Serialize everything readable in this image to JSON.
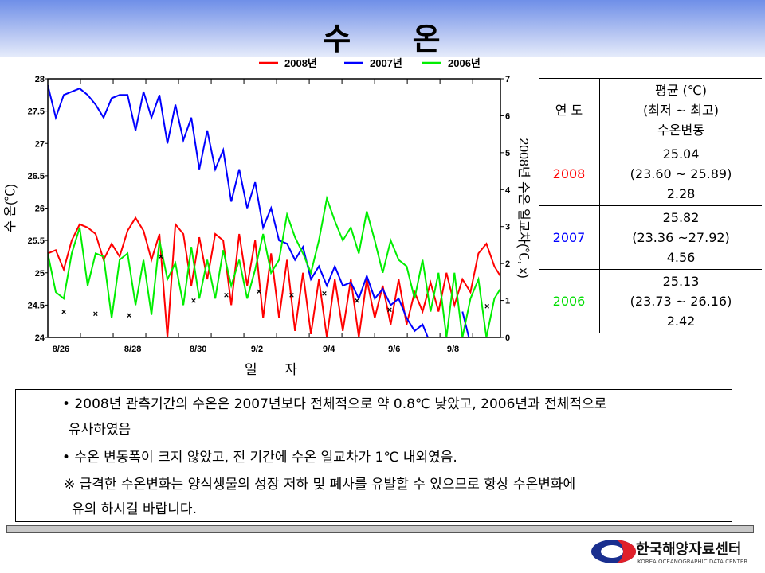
{
  "header": {
    "title": "수 온"
  },
  "chart_data": {
    "type": "line",
    "title": "수 온",
    "xlabel": "일 자",
    "ylabel": "수 온(℃)",
    "y2label": "2008년 수온 일교차(℃, x)",
    "ylim": [
      24,
      28
    ],
    "y2lim": [
      0,
      7
    ],
    "yticks": [
      "24",
      "24.5",
      "25",
      "25.5",
      "26",
      "26.5",
      "27",
      "27.5",
      "28"
    ],
    "y2ticks": [
      "0",
      "1",
      "2",
      "3",
      "4",
      "5",
      "6",
      "7"
    ],
    "xlim_days": [
      0,
      13.85
    ],
    "xticks": [
      {
        "label": "8/26",
        "day": 0.4
      },
      {
        "label": "8/28",
        "day": 2.6
      },
      {
        "label": "8/30",
        "day": 4.6
      },
      {
        "label": "9/2",
        "day": 6.4
      },
      {
        "label": "9/4",
        "day": 8.6
      },
      {
        "label": "9/6",
        "day": 10.6
      },
      {
        "label": "9/8",
        "day": 12.4
      }
    ],
    "x_step_days": 0.244,
    "series": [
      {
        "name": "2008년",
        "color": "#ff0000",
        "values": [
          25.3,
          25.35,
          25.05,
          25.5,
          25.75,
          25.7,
          25.6,
          25.2,
          25.45,
          25.25,
          25.65,
          25.85,
          25.65,
          25.2,
          25.6,
          24.0,
          25.75,
          25.6,
          24.8,
          25.55,
          24.9,
          25.6,
          25.5,
          24.5,
          25.6,
          24.8,
          25.5,
          24.3,
          25.3,
          24.3,
          25.2,
          24.1,
          25.0,
          24.05,
          24.9,
          24.0,
          24.9,
          24.1,
          24.9,
          24.0,
          24.9,
          24.3,
          24.8,
          24.2,
          24.9,
          24.2,
          24.7,
          24.4,
          24.85,
          24.4,
          25.0,
          24.5,
          24.9,
          24.7,
          25.3,
          25.45,
          25.1,
          24.9
        ]
      },
      {
        "name": "2007년",
        "color": "#0000ff",
        "values": [
          27.9,
          27.4,
          27.75,
          27.8,
          27.85,
          27.75,
          27.6,
          27.4,
          27.7,
          27.75,
          27.75,
          27.2,
          27.8,
          27.4,
          27.75,
          27.0,
          27.6,
          27.05,
          27.4,
          26.6,
          27.2,
          26.6,
          26.9,
          26.1,
          26.6,
          26.0,
          26.4,
          25.7,
          26.0,
          25.5,
          25.45,
          25.2,
          25.4,
          24.9,
          25.1,
          24.8,
          25.1,
          24.8,
          24.85,
          24.6,
          24.95,
          24.6,
          24.75,
          24.5,
          24.6,
          24.3,
          24.1,
          24.2,
          23.9,
          null,
          null,
          null,
          24.4,
          23.9,
          null,
          null,
          24.0,
          24.0
        ]
      },
      {
        "name": "2006년",
        "color": "#00ee00",
        "values": [
          25.3,
          24.7,
          24.6,
          25.3,
          25.7,
          24.8,
          25.3,
          25.25,
          24.3,
          25.2,
          25.3,
          24.5,
          25.2,
          24.35,
          25.5,
          24.9,
          25.15,
          24.5,
          25.4,
          24.6,
          25.2,
          24.6,
          25.35,
          24.8,
          25.2,
          24.6,
          25.05,
          25.6,
          25.0,
          25.2,
          25.9,
          25.55,
          25.3,
          25.0,
          25.5,
          26.15,
          25.8,
          25.5,
          25.7,
          25.3,
          25.95,
          25.5,
          25.0,
          25.5,
          25.2,
          25.1,
          24.6,
          25.2,
          24.4,
          25.0,
          24.0,
          25.0,
          24.0,
          24.6,
          24.9,
          24.0,
          24.6,
          24.8
        ]
      }
    ],
    "daily_range_2008": {
      "marker": "x",
      "axis": "right",
      "points": [
        [
          0.49,
          0.7
        ],
        [
          1.46,
          0.65
        ],
        [
          2.49,
          0.6
        ],
        [
          3.46,
          2.2
        ],
        [
          4.46,
          1.0
        ],
        [
          5.46,
          1.15
        ],
        [
          6.46,
          1.25
        ],
        [
          7.46,
          1.15
        ],
        [
          8.46,
          1.2
        ],
        [
          9.46,
          1.0
        ],
        [
          10.46,
          0.75
        ],
        [
          13.44,
          0.85
        ]
      ]
    },
    "legend": "top"
  },
  "table": {
    "header_year": "연 도",
    "header_stat": [
      "평균 (℃)",
      "(최저 ~ 최고)",
      "수온변동"
    ],
    "rows": [
      {
        "year": "2008",
        "color": "#ff0000",
        "mean": "25.04",
        "range": "(23.60 ~ 25.89)",
        "var": "2.28"
      },
      {
        "year": "2007",
        "color": "#0000ff",
        "mean": "25.82",
        "range": "(23.36 ~27.92)",
        "var": "4.56"
      },
      {
        "year": "2006",
        "color": "#00dd00",
        "mean": "25.13",
        "range": "(23.73 ~ 26.16)",
        "var": "2.42"
      }
    ]
  },
  "notes": {
    "l1": "• 2008년 관측기간의 수온은 2007년보다 전체적으로 약 0.8℃ 낮았고, 2006년과 전체적으로",
    "l2": "유사하였음",
    "l3": "• 수온 변동폭이 크지 않았고, 전 기간에 수온 일교차가  1℃ 내외였음.",
    "l4": "※ 급격한 수온변화는 양식생물의 성장 저하 및 폐사를 유발할 수 있으므로 항상 수온변화에",
    "l5": "유의 하시길 바랍니다."
  },
  "logo": {
    "name": "한국해양자료센터",
    "sub": "KOREA OCEANOGRAPHIC DATA CENTER",
    "mark": "KODC"
  }
}
